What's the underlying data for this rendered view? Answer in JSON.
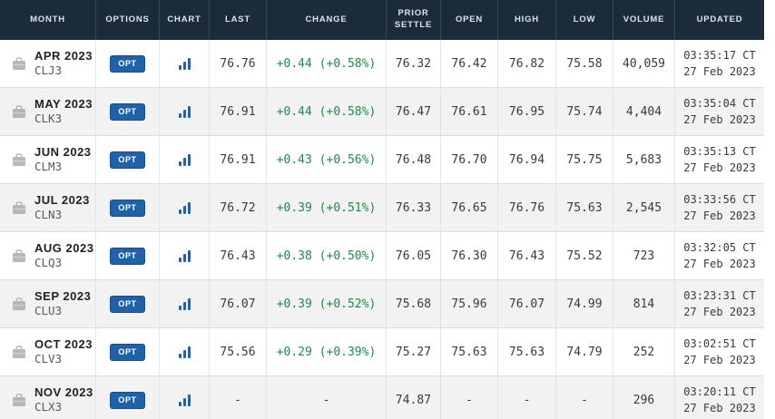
{
  "colors": {
    "header_bg": "#1c2b3a",
    "accent_blue": "#1f62a7",
    "positive_green": "#1e8c46",
    "row_alt_bg": "#f2f2f2"
  },
  "table": {
    "columns": [
      "MONTH",
      "OPTIONS",
      "CHART",
      "LAST",
      "CHANGE",
      "PRIOR SETTLE",
      "OPEN",
      "HIGH",
      "LOW",
      "VOLUME",
      "UPDATED"
    ],
    "options_button_label": "OPT",
    "rows": [
      {
        "month": "APR 2023",
        "code": "CLJ3",
        "last": "76.76",
        "change": "+0.44 (+0.58%)",
        "prior_settle": "76.32",
        "open": "76.42",
        "high": "76.82",
        "low": "75.58",
        "volume": "40,059",
        "updated_time": "03:35:17 CT",
        "updated_date": "27 Feb 2023"
      },
      {
        "month": "MAY 2023",
        "code": "CLK3",
        "last": "76.91",
        "change": "+0.44 (+0.58%)",
        "prior_settle": "76.47",
        "open": "76.61",
        "high": "76.95",
        "low": "75.74",
        "volume": "4,404",
        "updated_time": "03:35:04 CT",
        "updated_date": "27 Feb 2023"
      },
      {
        "month": "JUN 2023",
        "code": "CLM3",
        "last": "76.91",
        "change": "+0.43 (+0.56%)",
        "prior_settle": "76.48",
        "open": "76.70",
        "high": "76.94",
        "low": "75.75",
        "volume": "5,683",
        "updated_time": "03:35:13 CT",
        "updated_date": "27 Feb 2023"
      },
      {
        "month": "JUL 2023",
        "code": "CLN3",
        "last": "76.72",
        "change": "+0.39 (+0.51%)",
        "prior_settle": "76.33",
        "open": "76.65",
        "high": "76.76",
        "low": "75.63",
        "volume": "2,545",
        "updated_time": "03:33:56 CT",
        "updated_date": "27 Feb 2023"
      },
      {
        "month": "AUG 2023",
        "code": "CLQ3",
        "last": "76.43",
        "change": "+0.38 (+0.50%)",
        "prior_settle": "76.05",
        "open": "76.30",
        "high": "76.43",
        "low": "75.52",
        "volume": "723",
        "updated_time": "03:32:05 CT",
        "updated_date": "27 Feb 2023"
      },
      {
        "month": "SEP 2023",
        "code": "CLU3",
        "last": "76.07",
        "change": "+0.39 (+0.52%)",
        "prior_settle": "75.68",
        "open": "75.96",
        "high": "76.07",
        "low": "74.99",
        "volume": "814",
        "updated_time": "03:23:31 CT",
        "updated_date": "27 Feb 2023"
      },
      {
        "month": "OCT 2023",
        "code": "CLV3",
        "last": "75.56",
        "change": "+0.29 (+0.39%)",
        "prior_settle": "75.27",
        "open": "75.63",
        "high": "75.63",
        "low": "74.79",
        "volume": "252",
        "updated_time": "03:02:51 CT",
        "updated_date": "27 Feb 2023"
      },
      {
        "month": "NOV 2023",
        "code": "CLX3",
        "last": "-",
        "change": "-",
        "prior_settle": "74.87",
        "open": "-",
        "high": "-",
        "low": "-",
        "volume": "296",
        "updated_time": "03:20:11 CT",
        "updated_date": "27 Feb 2023"
      }
    ]
  }
}
